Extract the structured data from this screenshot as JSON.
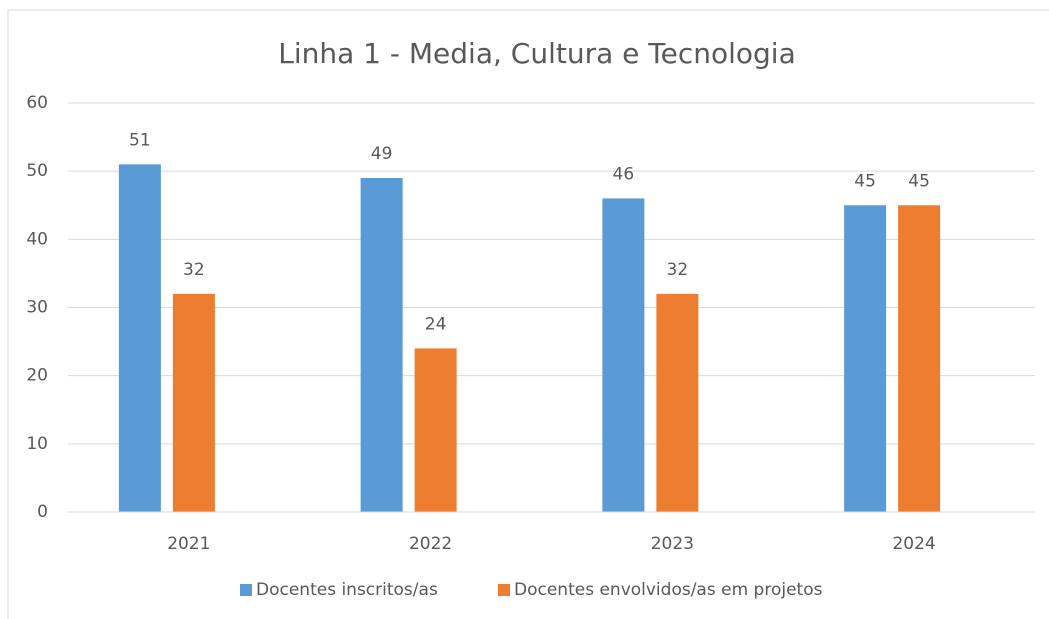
{
  "chart_data": {
    "type": "bar",
    "title": "Linha 1 - Media, Cultura e Tecnologia",
    "categories": [
      "2021",
      "2022",
      "2023",
      "2024"
    ],
    "series": [
      {
        "name": "Docentes inscritos/as",
        "color": "#5b9bd5",
        "values": [
          51,
          49,
          46,
          45
        ]
      },
      {
        "name": "Docentes envolvidos/as em projetos",
        "color": "#ed7d31",
        "values": [
          32,
          24,
          32,
          45
        ]
      }
    ],
    "ylim": [
      0,
      60
    ],
    "yticks": [
      0,
      10,
      20,
      30,
      40,
      50,
      60
    ],
    "grid": true,
    "legend": "bottom"
  }
}
